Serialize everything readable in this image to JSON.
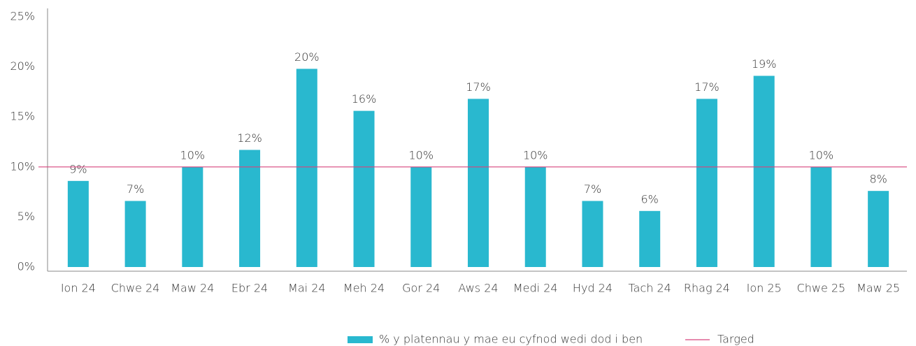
{
  "chart_data": {
    "type": "bar",
    "categories": [
      "Ion 24",
      "Chwe 24",
      "Maw 24",
      "Ebr 24",
      "Mai 24",
      "Meh 24",
      "Gor 24",
      "Aws 24",
      "Medi 24",
      "Hyd 24",
      "Tach 24",
      "Rhag 24",
      "Ion 25",
      "Chwe 25",
      "Maw 25"
    ],
    "series": [
      {
        "name": "% y platennau y mae eu cyfnod wedi dod i ben",
        "color": "#29b8cf",
        "values": [
          8.6,
          6.6,
          10,
          11.7,
          19.8,
          15.6,
          10,
          16.8,
          10,
          6.6,
          5.6,
          16.8,
          19.1,
          10,
          7.6
        ],
        "value_labels": [
          "9%",
          "7%",
          "10%",
          "12%",
          "20%",
          "16%",
          "10%",
          "17%",
          "10%",
          "7%",
          "6%",
          "17%",
          "19%",
          "10%",
          "8%"
        ]
      }
    ],
    "target": {
      "name": "Targed",
      "color": "#d6457e",
      "value": 10
    },
    "ylim": [
      0,
      25
    ],
    "yticks": [
      {
        "value": 0,
        "label": "0%"
      },
      {
        "value": 5,
        "label": "5%"
      },
      {
        "value": 10,
        "label": "10%"
      },
      {
        "value": 15,
        "label": "15%"
      },
      {
        "value": 20,
        "label": "20%"
      },
      {
        "value": 25,
        "label": "25%"
      }
    ],
    "legend": "bottom"
  }
}
